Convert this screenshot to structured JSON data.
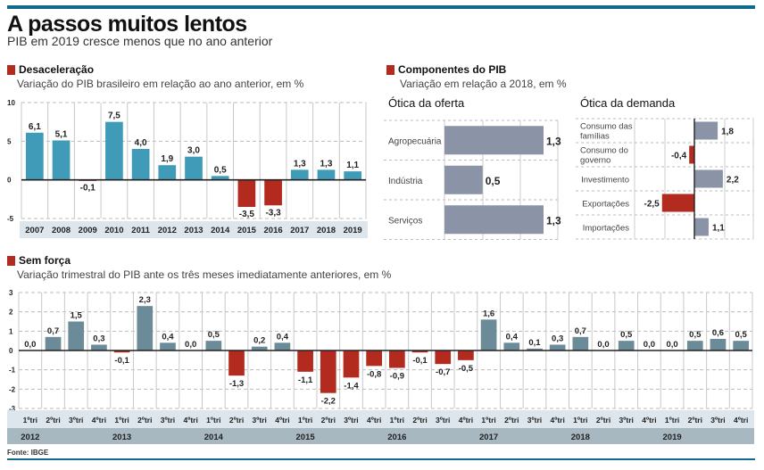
{
  "header": {
    "title": "A passos muitos lentos",
    "subtitle": "PIB em 2019 cresce menos que no ano anterior"
  },
  "colors": {
    "top_bar": "#0f6a8d",
    "section_marker": "#b32a1f",
    "annual_positive": "#3f9bb8",
    "negative": "#b32a1f",
    "components_positive": "#8a94a6",
    "quarterly_positive": "#6b8b98",
    "axis_band_light": "#dde6ec",
    "axis_band_dark": "#a7b8c1"
  },
  "sections": {
    "annual": {
      "heading": "Desaceleração",
      "subheading": "Variação do PIB brasileiro em relação ao ano anterior, em %"
    },
    "components": {
      "heading": "Componentes do PIB",
      "subheading": "Variação em relação a 2018, em %",
      "supply_title": "Ótica da oferta",
      "demand_title": "Ótica da demanda"
    },
    "quarterly": {
      "heading": "Sem força",
      "subheading": "Variação trimestral do PIB ante os três meses imediatamente anteriores, em %"
    }
  },
  "source": "Fonte: IBGE",
  "chart_data": [
    {
      "id": "annual",
      "type": "bar",
      "title": "Desaceleração",
      "subtitle": "Variação do PIB brasileiro em relação ao ano anterior, em %",
      "xlabel": "",
      "ylabel": "%",
      "ylim": [
        -5,
        10
      ],
      "yticks": [
        10,
        5,
        0,
        -5
      ],
      "grid": true,
      "categories": [
        "2007",
        "2008",
        "2009",
        "2010",
        "2011",
        "2012",
        "2013",
        "2014",
        "2015",
        "2016",
        "2017",
        "2018",
        "2019"
      ],
      "values": [
        6.1,
        5.1,
        -0.1,
        7.5,
        4.0,
        1.9,
        3.0,
        0.5,
        -3.5,
        -3.3,
        1.3,
        1.3,
        1.1
      ],
      "labels": [
        "6,1",
        "5,1",
        "-0,1",
        "7,5",
        "4,0",
        "1,9",
        "3,0",
        "0,5",
        "-3,5",
        "-3,3",
        "1,3",
        "1,3",
        "1,1"
      ]
    },
    {
      "id": "supply",
      "type": "bar",
      "orientation": "horizontal",
      "title": "Ótica da oferta",
      "xlim": [
        0,
        1.3
      ],
      "grid": true,
      "categories": [
        "Agropecuária",
        "Indústria",
        "Serviços"
      ],
      "values": [
        1.3,
        0.5,
        1.3
      ],
      "labels": [
        "1,3",
        "0,5",
        "1,3"
      ]
    },
    {
      "id": "demand",
      "type": "bar",
      "orientation": "horizontal",
      "title": "Ótica da demanda",
      "xlim": [
        -3,
        2.5
      ],
      "grid": true,
      "categories": [
        [
          "Consumo das",
          "famílias"
        ],
        [
          "Consumo do",
          "governo"
        ],
        [
          "Investimento"
        ],
        [
          "Exportações"
        ],
        [
          "Importações"
        ]
      ],
      "values": [
        1.8,
        -0.4,
        2.2,
        -2.5,
        1.1
      ],
      "labels": [
        "1,8",
        "-0,4",
        "2,2",
        "-2,5",
        "1,1"
      ]
    },
    {
      "id": "quarterly",
      "type": "bar",
      "title": "Sem força",
      "subtitle": "Variação trimestral do PIB ante os três meses imediatamente anteriores, em %",
      "ylim": [
        -3,
        3
      ],
      "yticks": [
        3,
        2,
        1,
        0,
        -1,
        -2,
        -3
      ],
      "grid": true,
      "quarters": [
        "1ºtri",
        "2ºtri",
        "3ºtri",
        "4ºtri",
        "1ºtri",
        "2ºtri",
        "3ºtri",
        "4ºtri",
        "1ºtri",
        "2ºtri",
        "3ºtri",
        "4ºtri",
        "1ºtri",
        "2ºtri",
        "3ºtri",
        "4ºtri",
        "1ºtri",
        "2ºtri",
        "3ºtri",
        "4ºtri",
        "1ºtri",
        "2ºtri",
        "3ºtri",
        "4ºtri",
        "1ºtri",
        "2ºtri",
        "3ºtri",
        "4ºtri",
        "1ºtri",
        "2ºtri",
        "3ºtri",
        "4ºtri"
      ],
      "years": [
        "2012",
        "2013",
        "2014",
        "2015",
        "2016",
        "2017",
        "2018",
        "2019"
      ],
      "values": [
        0.0,
        0.7,
        1.5,
        0.3,
        -0.1,
        2.3,
        0.4,
        0.0,
        0.5,
        -1.3,
        0.2,
        0.4,
        -1.1,
        -2.2,
        -1.4,
        -0.8,
        -0.9,
        -0.1,
        -0.7,
        -0.5,
        1.6,
        0.4,
        0.1,
        0.3,
        0.7,
        0.0,
        0.5,
        0.0,
        0.0,
        0.5,
        0.6,
        0.5
      ],
      "labels": [
        "0,0",
        "0,7",
        "1,5",
        "0,3",
        "-0,1",
        "2,3",
        "0,4",
        "0,0",
        "0,5",
        "-1,3",
        "0,2",
        "0,4",
        "-1,1",
        "-2,2",
        "-1,4",
        "-0,8",
        "-0,9",
        "-0,1",
        "-0,7",
        "-0,5",
        "1,6",
        "0,4",
        "0,1",
        "0,3",
        "0,7",
        "0,0",
        "0,5",
        "0,0",
        "0,0",
        "0,5",
        "0,6",
        "0,5"
      ]
    }
  ]
}
